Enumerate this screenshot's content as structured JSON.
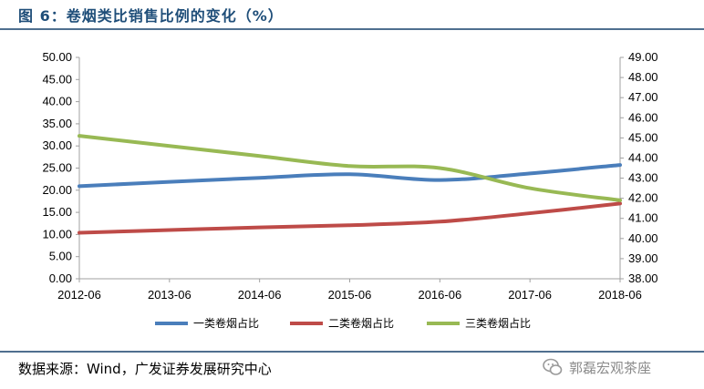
{
  "figure_title": "图 6：卷烟类比销售比例的变化（%）",
  "source_text": "数据来源：Wind，广发证券发展研究中心",
  "watermark_text": "郭磊宏观茶座",
  "colors": {
    "series1": "#4a7ebb",
    "series2": "#be4b48",
    "series3": "#98b954",
    "title": "#1f4e79",
    "rule": "#4f6f8f",
    "axis": "#a0a0a0"
  },
  "chart_data": {
    "type": "line",
    "title": "",
    "xlabel": "",
    "ylabel": "",
    "x": [
      "2012-06",
      "2013-06",
      "2014-06",
      "2015-06",
      "2016-06",
      "2017-06",
      "2018-06"
    ],
    "ylim": [
      0,
      50
    ],
    "y_ticks": [
      "0.00",
      "5.00",
      "10.00",
      "15.00",
      "20.00",
      "25.00",
      "30.00",
      "35.00",
      "40.00",
      "45.00",
      "50.00"
    ],
    "y2lim": [
      38,
      49
    ],
    "y2_ticks": [
      "38.00",
      "39.00",
      "40.00",
      "41.00",
      "42.00",
      "43.00",
      "44.00",
      "45.00",
      "46.00",
      "47.00",
      "48.00",
      "49.00"
    ],
    "legend_position": "bottom",
    "grid": false,
    "series": [
      {
        "name": "一类卷烟占比",
        "axis": "left",
        "values": [
          20.9,
          21.9,
          22.8,
          23.6,
          22.3,
          23.8,
          25.7
        ]
      },
      {
        "name": "二类卷烟占比",
        "axis": "left",
        "values": [
          10.4,
          11.0,
          11.6,
          12.1,
          12.9,
          14.8,
          17.0
        ]
      },
      {
        "name": "三类卷烟占比",
        "axis": "right",
        "values": [
          45.1,
          44.6,
          44.1,
          43.6,
          43.5,
          42.5,
          41.9
        ]
      }
    ]
  }
}
